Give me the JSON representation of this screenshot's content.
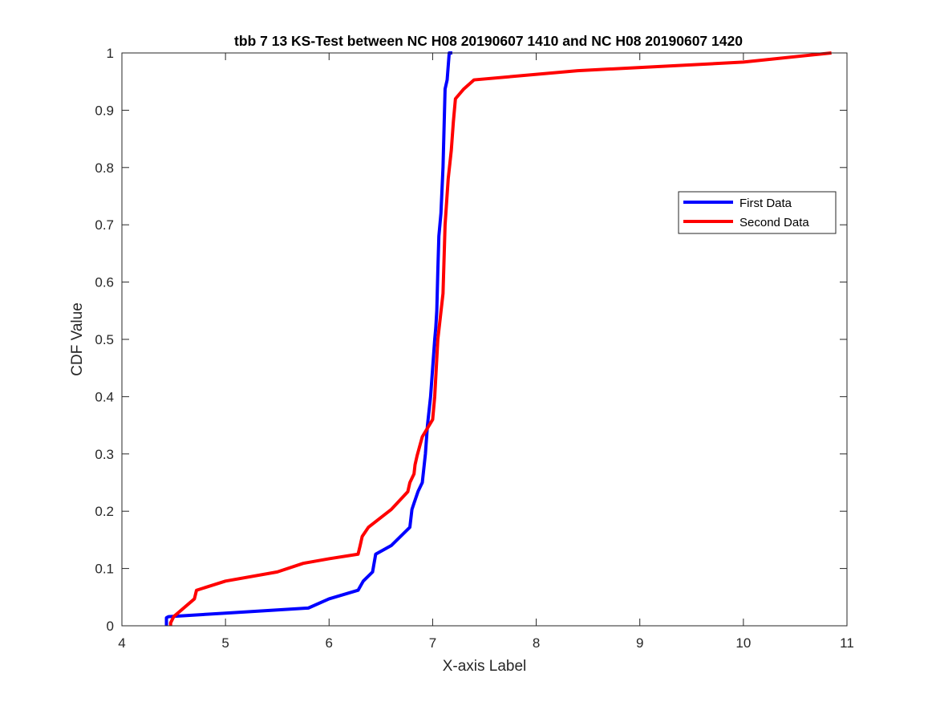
{
  "chart_data": {
    "type": "line",
    "title": "tbb 7 13 KS-Test between NC H08 20190607 1410 and NC H08 20190607 1420",
    "xlabel": "X-axis Label",
    "ylabel": "CDF Value",
    "xlim": [
      4,
      11
    ],
    "ylim": [
      0,
      1
    ],
    "xticks": [
      4,
      5,
      6,
      7,
      8,
      9,
      10,
      11
    ],
    "yticks": [
      0,
      0.1,
      0.2,
      0.3,
      0.4,
      0.5,
      0.6,
      0.7,
      0.8,
      0.9,
      1
    ],
    "grid": false,
    "legend_position": "right",
    "series": [
      {
        "name": "First Data",
        "color": "#0000ff",
        "x": [
          4.43,
          4.43,
          4.44,
          4.45,
          5.0,
          5.8,
          6.0,
          6.28,
          6.33,
          6.42,
          6.45,
          6.6,
          6.78,
          6.8,
          6.82,
          6.86,
          6.9,
          6.93,
          6.95,
          6.98,
          7.0,
          7.02,
          7.03,
          7.04,
          7.05,
          7.06,
          7.08,
          7.1,
          7.12,
          7.14,
          7.16,
          7.19
        ],
        "y": [
          0,
          0.014,
          0.015,
          0.016,
          0.022,
          0.031,
          0.047,
          0.062,
          0.078,
          0.094,
          0.125,
          0.14,
          0.172,
          0.203,
          0.214,
          0.235,
          0.25,
          0.3,
          0.35,
          0.4,
          0.45,
          0.5,
          0.52,
          0.55,
          0.62,
          0.68,
          0.72,
          0.8,
          0.937,
          0.953,
          1.0,
          1.0
        ]
      },
      {
        "name": "Second Data",
        "color": "#ff0000",
        "x": [
          4.47,
          4.47,
          4.5,
          4.7,
          4.72,
          5.0,
          5.5,
          5.75,
          6.0,
          6.28,
          6.3,
          6.32,
          6.38,
          6.6,
          6.76,
          6.78,
          6.82,
          6.83,
          6.85,
          6.9,
          7.0,
          7.02,
          7.05,
          7.1,
          7.12,
          7.15,
          7.18,
          7.2,
          7.22,
          7.3,
          7.4,
          8.4,
          10.0,
          10.85
        ],
        "y": [
          0,
          0.005,
          0.016,
          0.047,
          0.062,
          0.078,
          0.094,
          0.109,
          0.117,
          0.125,
          0.14,
          0.156,
          0.172,
          0.203,
          0.234,
          0.25,
          0.265,
          0.281,
          0.297,
          0.33,
          0.36,
          0.4,
          0.5,
          0.58,
          0.7,
          0.78,
          0.83,
          0.88,
          0.92,
          0.937,
          0.953,
          0.969,
          0.984,
          1.0
        ]
      }
    ]
  }
}
